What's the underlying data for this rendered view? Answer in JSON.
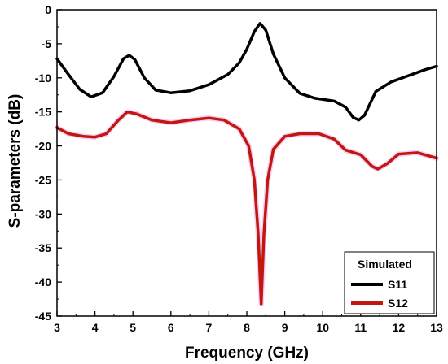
{
  "chart_data": {
    "type": "line",
    "title": "",
    "xlabel": "Frequency (GHz)",
    "ylabel": "S-parameters (dB)",
    "xlim": [
      3,
      13
    ],
    "ylim": [
      -45,
      0
    ],
    "x_ticks": [
      "3",
      "4",
      "5",
      "6",
      "7",
      "8",
      "9",
      "10",
      "11",
      "12",
      "13"
    ],
    "y_ticks": [
      "0",
      "-5",
      "-10",
      "-15",
      "-20",
      "-25",
      "-30",
      "-35",
      "-40",
      "-45"
    ],
    "grid": false,
    "legend": {
      "title": "Simulated",
      "position": "bottom-right"
    },
    "series": [
      {
        "name": "S11",
        "color": "#000000",
        "points": [
          [
            3.0,
            -7.2
          ],
          [
            3.3,
            -9.5
          ],
          [
            3.6,
            -11.7
          ],
          [
            3.9,
            -12.8
          ],
          [
            4.2,
            -12.2
          ],
          [
            4.5,
            -9.8
          ],
          [
            4.75,
            -7.2
          ],
          [
            4.9,
            -6.7
          ],
          [
            5.05,
            -7.3
          ],
          [
            5.3,
            -10.0
          ],
          [
            5.6,
            -11.8
          ],
          [
            6.0,
            -12.2
          ],
          [
            6.5,
            -11.9
          ],
          [
            7.0,
            -11.0
          ],
          [
            7.5,
            -9.5
          ],
          [
            7.8,
            -7.8
          ],
          [
            8.0,
            -5.8
          ],
          [
            8.2,
            -3.2
          ],
          [
            8.35,
            -2.0
          ],
          [
            8.5,
            -3.0
          ],
          [
            8.7,
            -6.5
          ],
          [
            9.0,
            -10.0
          ],
          [
            9.4,
            -12.3
          ],
          [
            9.8,
            -13.0
          ],
          [
            10.3,
            -13.4
          ],
          [
            10.6,
            -14.3
          ],
          [
            10.8,
            -15.8
          ],
          [
            10.95,
            -16.2
          ],
          [
            11.1,
            -15.5
          ],
          [
            11.4,
            -12.0
          ],
          [
            11.8,
            -10.6
          ],
          [
            12.3,
            -9.6
          ],
          [
            12.7,
            -8.8
          ],
          [
            13.0,
            -8.3
          ]
        ]
      },
      {
        "name": "S12",
        "color": "#c0180f",
        "points": [
          [
            3.0,
            -17.3
          ],
          [
            3.3,
            -18.2
          ],
          [
            3.7,
            -18.6
          ],
          [
            4.0,
            -18.7
          ],
          [
            4.3,
            -18.2
          ],
          [
            4.6,
            -16.3
          ],
          [
            4.85,
            -15.0
          ],
          [
            5.1,
            -15.3
          ],
          [
            5.5,
            -16.2
          ],
          [
            6.0,
            -16.6
          ],
          [
            6.5,
            -16.2
          ],
          [
            7.0,
            -15.9
          ],
          [
            7.4,
            -16.2
          ],
          [
            7.8,
            -17.5
          ],
          [
            8.05,
            -20.0
          ],
          [
            8.2,
            -25.0
          ],
          [
            8.3,
            -33.0
          ],
          [
            8.38,
            -43.2
          ],
          [
            8.45,
            -33.0
          ],
          [
            8.55,
            -25.0
          ],
          [
            8.7,
            -20.5
          ],
          [
            9.0,
            -18.6
          ],
          [
            9.4,
            -18.2
          ],
          [
            9.9,
            -18.2
          ],
          [
            10.3,
            -19.0
          ],
          [
            10.6,
            -20.6
          ],
          [
            11.0,
            -21.3
          ],
          [
            11.3,
            -23.0
          ],
          [
            11.45,
            -23.4
          ],
          [
            11.7,
            -22.6
          ],
          [
            12.0,
            -21.2
          ],
          [
            12.5,
            -21.0
          ],
          [
            13.0,
            -21.8
          ]
        ]
      }
    ]
  }
}
